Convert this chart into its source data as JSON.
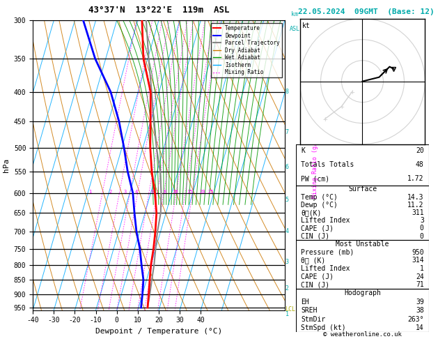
{
  "title_left": "43°37'N  13°22'E  119m  ASL",
  "title_right": "22.05.2024  09GMT  (Base: 12)",
  "xlabel": "Dewpoint / Temperature (°C)",
  "ylabel_left": "hPa",
  "xmin": -40,
  "xmax": 40,
  "pmin": 300,
  "pmax": 960,
  "skew_factor": 40,
  "temp_color": "#ff0000",
  "dewp_color": "#0000ff",
  "parcel_color": "#888888",
  "dry_adiabat_color": "#cc7700",
  "wet_adiabat_color": "#009900",
  "isotherm_color": "#00aaff",
  "mixing_ratio_color": "#ff00ff",
  "pressure_ticks": [
    300,
    350,
    400,
    450,
    500,
    550,
    600,
    650,
    700,
    750,
    800,
    850,
    900,
    950
  ],
  "km_labels": [
    "8",
    "7",
    "6",
    "5",
    "4",
    "3",
    "2",
    "1",
    "LCL"
  ],
  "km_pressures": [
    400,
    470,
    540,
    616,
    700,
    790,
    880,
    975,
    958
  ],
  "info_K": 20,
  "info_TT": 48,
  "info_PW": "1.72",
  "surface_temp": "14.3",
  "surface_dewp": "11.2",
  "surface_theta_e": "311",
  "surface_li": "3",
  "surface_cape": "0",
  "surface_cin": "0",
  "mu_pressure": "950",
  "mu_theta_e": "314",
  "mu_li": "1",
  "mu_cape": "24",
  "mu_cin": "71",
  "hodo_EH": "39",
  "hodo_SREH": "38",
  "hodo_StmDir": "263°",
  "hodo_StmSpd": "14",
  "bg_color": "#ffffff",
  "cyan_color": "#00aaaa",
  "yellow_color": "#aaaa00",
  "font_family": "monospace"
}
